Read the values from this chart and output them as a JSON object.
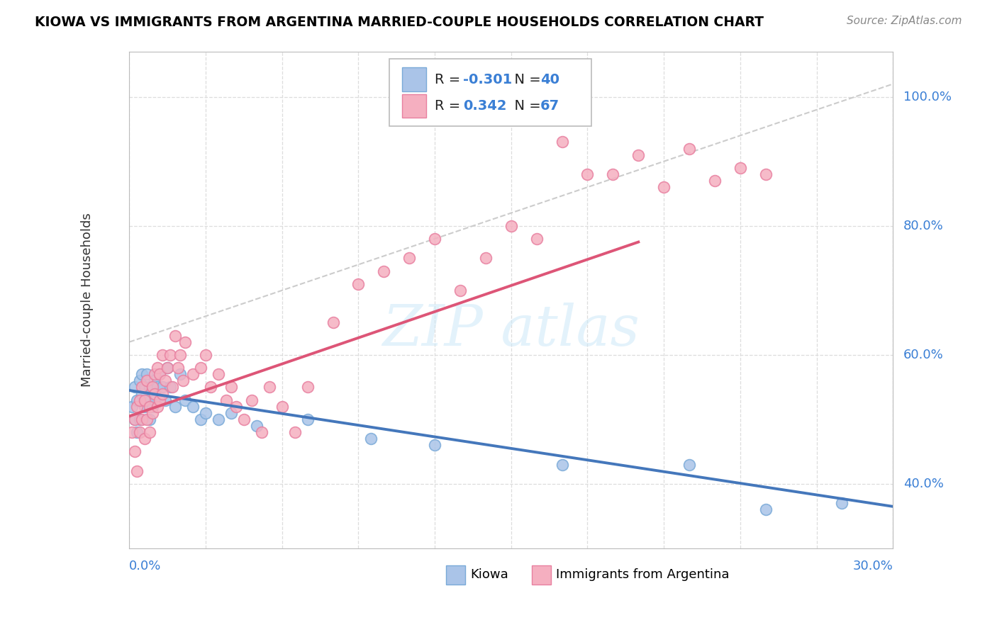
{
  "title": "KIOWA VS IMMIGRANTS FROM ARGENTINA MARRIED-COUPLE HOUSEHOLDS CORRELATION CHART",
  "source": "Source: ZipAtlas.com",
  "ylabel": "Married-couple Households",
  "y_ticks": [
    "40.0%",
    "60.0%",
    "80.0%",
    "100.0%"
  ],
  "y_tick_vals": [
    0.4,
    0.6,
    0.8,
    1.0
  ],
  "kiowa_color": "#aac4e8",
  "arg_color": "#f5afc0",
  "kiowa_edge": "#7aaad8",
  "arg_edge": "#e880a0",
  "trend_kiowa_color": "#4477bb",
  "trend_arg_color": "#dd5577",
  "ref_line_color": "#cccccc",
  "background_color": "#ffffff",
  "grid_color": "#dddddd",
  "kiowa_trend_x0": 0.0,
  "kiowa_trend_y0": 0.545,
  "kiowa_trend_x1": 0.3,
  "kiowa_trend_y1": 0.365,
  "arg_trend_x0": 0.0,
  "arg_trend_y0": 0.505,
  "arg_trend_x1": 0.2,
  "arg_trend_y1": 0.775,
  "ref_line_x0": 0.0,
  "ref_line_y0": 0.62,
  "ref_line_x1": 0.3,
  "ref_line_y1": 1.02,
  "kiowa_scatter_x": [
    0.001,
    0.002,
    0.002,
    0.003,
    0.003,
    0.004,
    0.004,
    0.005,
    0.005,
    0.006,
    0.006,
    0.007,
    0.007,
    0.008,
    0.008,
    0.009,
    0.01,
    0.01,
    0.011,
    0.012,
    0.013,
    0.014,
    0.015,
    0.016,
    0.018,
    0.02,
    0.022,
    0.025,
    0.028,
    0.03,
    0.035,
    0.04,
    0.05,
    0.07,
    0.095,
    0.12,
    0.17,
    0.22,
    0.25,
    0.28
  ],
  "kiowa_scatter_y": [
    0.52,
    0.5,
    0.55,
    0.48,
    0.53,
    0.5,
    0.56,
    0.54,
    0.57,
    0.52,
    0.55,
    0.57,
    0.53,
    0.5,
    0.55,
    0.52,
    0.56,
    0.53,
    0.55,
    0.57,
    0.55,
    0.53,
    0.58,
    0.55,
    0.52,
    0.57,
    0.53,
    0.52,
    0.5,
    0.51,
    0.5,
    0.51,
    0.49,
    0.5,
    0.47,
    0.46,
    0.43,
    0.43,
    0.36,
    0.37
  ],
  "arg_scatter_x": [
    0.001,
    0.002,
    0.002,
    0.003,
    0.003,
    0.004,
    0.004,
    0.005,
    0.005,
    0.006,
    0.006,
    0.007,
    0.007,
    0.008,
    0.008,
    0.009,
    0.009,
    0.01,
    0.01,
    0.011,
    0.011,
    0.012,
    0.012,
    0.013,
    0.013,
    0.014,
    0.015,
    0.016,
    0.017,
    0.018,
    0.019,
    0.02,
    0.021,
    0.022,
    0.025,
    0.028,
    0.03,
    0.032,
    0.035,
    0.038,
    0.04,
    0.042,
    0.045,
    0.048,
    0.052,
    0.055,
    0.06,
    0.065,
    0.07,
    0.08,
    0.09,
    0.1,
    0.11,
    0.12,
    0.13,
    0.14,
    0.15,
    0.16,
    0.17,
    0.18,
    0.19,
    0.2,
    0.21,
    0.22,
    0.23,
    0.24,
    0.25
  ],
  "arg_scatter_y": [
    0.48,
    0.45,
    0.5,
    0.42,
    0.52,
    0.48,
    0.53,
    0.5,
    0.55,
    0.47,
    0.53,
    0.5,
    0.56,
    0.52,
    0.48,
    0.55,
    0.51,
    0.54,
    0.57,
    0.52,
    0.58,
    0.53,
    0.57,
    0.54,
    0.6,
    0.56,
    0.58,
    0.6,
    0.55,
    0.63,
    0.58,
    0.6,
    0.56,
    0.62,
    0.57,
    0.58,
    0.6,
    0.55,
    0.57,
    0.53,
    0.55,
    0.52,
    0.5,
    0.53,
    0.48,
    0.55,
    0.52,
    0.48,
    0.55,
    0.65,
    0.71,
    0.73,
    0.75,
    0.78,
    0.7,
    0.75,
    0.8,
    0.78,
    0.93,
    0.88,
    0.88,
    0.91,
    0.86,
    0.92,
    0.87,
    0.89,
    0.88
  ],
  "xlim": [
    0.0,
    0.3
  ],
  "ylim": [
    0.3,
    1.07
  ]
}
